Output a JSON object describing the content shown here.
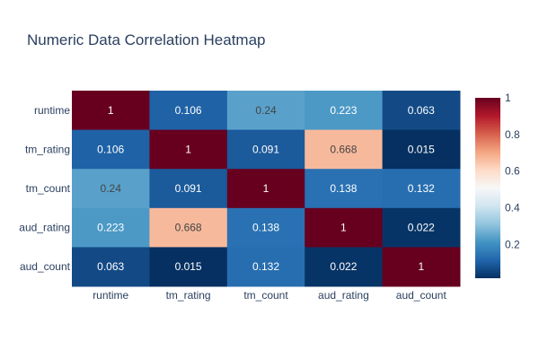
{
  "chart_data": {
    "type": "heatmap",
    "title": "Numeric Data Correlation Heatmap",
    "x_categories": [
      "runtime",
      "tm_rating",
      "tm_count",
      "aud_rating",
      "aud_count"
    ],
    "y_categories": [
      "runtime",
      "tm_rating",
      "tm_count",
      "aud_rating",
      "aud_count"
    ],
    "values": [
      [
        1,
        0.106,
        0.24,
        0.223,
        0.063
      ],
      [
        0.106,
        1,
        0.091,
        0.668,
        0.015
      ],
      [
        0.24,
        0.091,
        1,
        0.138,
        0.132
      ],
      [
        0.223,
        0.668,
        0.138,
        1,
        0.022
      ],
      [
        0.063,
        0.015,
        0.132,
        0.022,
        1
      ]
    ],
    "value_labels": [
      [
        "1",
        "0.106",
        "0.24",
        "0.223",
        "0.063"
      ],
      [
        "0.106",
        "1",
        "0.091",
        "0.668",
        "0.015"
      ],
      [
        "0.24",
        "0.091",
        "1",
        "0.138",
        "0.132"
      ],
      [
        "0.223",
        "0.668",
        "0.138",
        "1",
        "0.022"
      ],
      [
        "0.063",
        "0.015",
        "0.132",
        "0.022",
        "1"
      ]
    ],
    "colorscale": "RdBu",
    "zmin": 0.015,
    "zmax": 1,
    "colorbar": {
      "tick_values": [
        0.2,
        0.4,
        0.6,
        0.8,
        1
      ],
      "tick_labels": [
        "0.2",
        "0.4",
        "0.6",
        "0.8",
        "1"
      ]
    },
    "colors": {
      "title": "#2a3f5f",
      "tick": "#2a3f5f",
      "background": "#ffffff"
    }
  }
}
